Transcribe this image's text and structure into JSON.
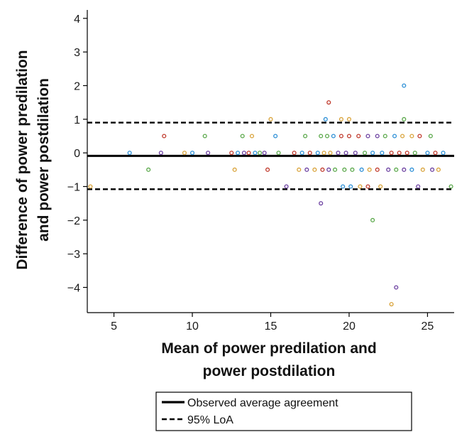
{
  "chart_data": {
    "type": "scatter",
    "title": "",
    "xlabel_lines": [
      "Mean of power predilation and",
      "power postdilation"
    ],
    "ylabel_lines": [
      "Difference of power predilation",
      "and power postdilation"
    ],
    "xlim": [
      3.3,
      26.7
    ],
    "ylim": [
      -4.75,
      4.25
    ],
    "xticks": [
      5,
      10,
      15,
      20,
      25
    ],
    "yticks": [
      4,
      3,
      2,
      1,
      0,
      -1,
      -2,
      -3,
      -4
    ],
    "ytick_labels": [
      "4",
      "3",
      "2",
      "1",
      "0",
      "−1",
      "−2",
      "−3",
      "−4"
    ],
    "mean_line": -0.09,
    "loa_upper": 0.9,
    "loa_lower": -1.08,
    "legend": {
      "position": "bottom-center",
      "entries": [
        "Observed average agreement",
        "95% LoA"
      ]
    },
    "point_colors": [
      "#d9a33a",
      "#2c8fd6",
      "#5aa84a",
      "#6b3fa0",
      "#c0392b"
    ],
    "points": [
      [
        3.5,
        -1
      ],
      [
        6,
        0
      ],
      [
        7.2,
        -0.5
      ],
      [
        8,
        0
      ],
      [
        8.2,
        0.5
      ],
      [
        9.5,
        0
      ],
      [
        10,
        0
      ],
      [
        10.8,
        0.5
      ],
      [
        11,
        0
      ],
      [
        12.5,
        0
      ],
      [
        12.7,
        -0.5
      ],
      [
        12.9,
        0
      ],
      [
        13.2,
        0.5
      ],
      [
        13.3,
        0
      ],
      [
        13.6,
        0
      ],
      [
        13.8,
        0.5
      ],
      [
        14,
        0
      ],
      [
        14.3,
        0
      ],
      [
        14.6,
        0
      ],
      [
        14.8,
        -0.5
      ],
      [
        15,
        1
      ],
      [
        15.3,
        0.5
      ],
      [
        15.5,
        0
      ],
      [
        16,
        -1
      ],
      [
        16.5,
        0
      ],
      [
        16.8,
        -0.5
      ],
      [
        17,
        0
      ],
      [
        17.2,
        0.5
      ],
      [
        17.3,
        -0.5
      ],
      [
        17.5,
        0
      ],
      [
        17.8,
        -0.5
      ],
      [
        18,
        0
      ],
      [
        18.2,
        0.5
      ],
      [
        18.2,
        -1.5
      ],
      [
        18.3,
        -0.5
      ],
      [
        18.4,
        0
      ],
      [
        18.5,
        1
      ],
      [
        18.6,
        0.5
      ],
      [
        18.7,
        -0.5
      ],
      [
        18.7,
        1.5
      ],
      [
        18.8,
        0
      ],
      [
        19,
        0.5
      ],
      [
        19.1,
        -0.5
      ],
      [
        19.3,
        0
      ],
      [
        19.5,
        0.5
      ],
      [
        19.5,
        1
      ],
      [
        19.6,
        -1
      ],
      [
        19.7,
        -0.5
      ],
      [
        19.8,
        0
      ],
      [
        20,
        0.5
      ],
      [
        20,
        1
      ],
      [
        20.1,
        -1
      ],
      [
        20.2,
        -0.5
      ],
      [
        20.4,
        0
      ],
      [
        20.6,
        0.5
      ],
      [
        20.7,
        -1
      ],
      [
        20.8,
        -0.5
      ],
      [
        21,
        0
      ],
      [
        21.2,
        0.5
      ],
      [
        21.2,
        -1
      ],
      [
        21.3,
        -0.5
      ],
      [
        21.5,
        0
      ],
      [
        21.5,
        -2
      ],
      [
        21.8,
        0.5
      ],
      [
        21.8,
        -0.5
      ],
      [
        22,
        -1
      ],
      [
        22.1,
        0
      ],
      [
        22.3,
        0.5
      ],
      [
        22.5,
        -0.5
      ],
      [
        22.7,
        0
      ],
      [
        22.7,
        -4.5
      ],
      [
        22.9,
        0.5
      ],
      [
        23,
        -0.5
      ],
      [
        23,
        -4
      ],
      [
        23.2,
        0
      ],
      [
        23.4,
        0.5
      ],
      [
        23.5,
        2
      ],
      [
        23.5,
        1
      ],
      [
        23.5,
        -0.5
      ],
      [
        23.7,
        0
      ],
      [
        24,
        0.5
      ],
      [
        24,
        -0.5
      ],
      [
        24.2,
        0
      ],
      [
        24.4,
        -1
      ],
      [
        24.5,
        0.5
      ],
      [
        24.7,
        -0.5
      ],
      [
        25,
        0
      ],
      [
        25.2,
        0.5
      ],
      [
        25.3,
        -0.5
      ],
      [
        25.5,
        0
      ],
      [
        25.7,
        -0.5
      ],
      [
        26,
        0
      ],
      [
        26.5,
        -1
      ]
    ]
  }
}
